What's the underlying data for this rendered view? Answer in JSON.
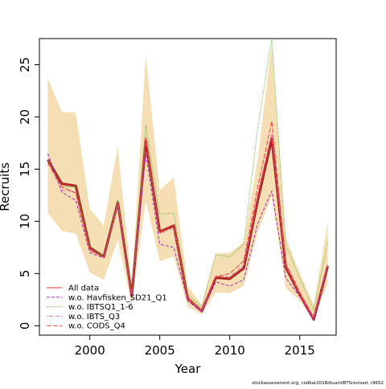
{
  "chart_data": {
    "type": "line",
    "xlabel": "Year",
    "ylabel": "Recruits",
    "xlim": [
      1996.4,
      2017.6
    ],
    "ylim": [
      -0.9,
      27.5
    ],
    "x_ticks": [
      2000,
      2005,
      2010,
      2015
    ],
    "y_ticks": [
      0,
      5,
      10,
      15,
      20,
      25
    ],
    "x": [
      1997,
      1998,
      1999,
      2000,
      2001,
      2002,
      2003,
      2004,
      2005,
      2006,
      2007,
      2008,
      2009,
      2010,
      2011,
      2012,
      2013,
      2014,
      2015,
      2016,
      2017
    ],
    "band": {
      "color": "#f5deb3",
      "upper": [
        23.7,
        20.5,
        20.4,
        11.2,
        9.6,
        17.2,
        3.9,
        25.9,
        13.0,
        14.2,
        3.8,
        2.0,
        6.9,
        7.0,
        8.0,
        16.0,
        27.0,
        8.5,
        5.0,
        2.0,
        9.9
      ],
      "lower": [
        10.8,
        9.1,
        8.8,
        5.1,
        4.4,
        8.2,
        2.0,
        12.0,
        6.2,
        6.6,
        1.8,
        1.1,
        3.2,
        3.1,
        3.8,
        9.0,
        12.4,
        3.6,
        2.4,
        0.5,
        4.0
      ]
    },
    "series": [
      {
        "name": "All data",
        "color": "#8b1a1a",
        "style": "bold",
        "values": [
          15.9,
          13.6,
          13.4,
          7.5,
          6.6,
          11.8,
          2.9,
          17.7,
          9.0,
          9.6,
          2.6,
          1.4,
          4.6,
          4.5,
          5.5,
          12.0,
          17.9,
          5.6,
          3.0,
          0.6,
          5.7
        ]
      },
      {
        "name": "All data",
        "color": "#e8342c",
        "style": "solid",
        "values": [
          15.9,
          13.6,
          13.4,
          7.5,
          6.6,
          11.8,
          2.9,
          17.7,
          9.0,
          9.6,
          2.6,
          1.4,
          4.6,
          4.5,
          5.5,
          12.0,
          17.9,
          5.6,
          3.0,
          0.6,
          5.7
        ]
      },
      {
        "name": "w.o. Havfisken_SD21_Q1",
        "color": "#9b30b0",
        "style": "dashed",
        "values": [
          16.5,
          12.8,
          12.0,
          7.0,
          6.5,
          11.5,
          2.7,
          16.5,
          7.8,
          7.5,
          2.4,
          1.3,
          4.2,
          3.8,
          4.4,
          9.8,
          12.9,
          4.6,
          2.8,
          0.5,
          5.6
        ]
      },
      {
        "name": "w.o. IBTSQ1_1-6",
        "color": "#4caf1f",
        "style": "dotted",
        "values": [
          15.8,
          13.3,
          13.3,
          7.6,
          6.6,
          12.0,
          3.2,
          19.2,
          10.7,
          10.8,
          3.0,
          1.8,
          6.8,
          6.6,
          7.8,
          19.0,
          27.5,
          7.7,
          4.6,
          1.5,
          8.0
        ]
      },
      {
        "name": "w.o. IBTS_Q3",
        "color": "#e26aa8",
        "style": "dashdot",
        "values": [
          15.7,
          13.0,
          12.8,
          7.3,
          6.5,
          11.7,
          2.8,
          18.0,
          8.8,
          9.4,
          2.5,
          1.4,
          4.8,
          4.7,
          5.8,
          12.6,
          18.5,
          5.8,
          3.1,
          0.7,
          5.9
        ]
      },
      {
        "name": "w.o. CODS_Q4",
        "color": "#f0433a",
        "style": "longdash",
        "values": [
          15.6,
          13.3,
          12.7,
          7.2,
          6.6,
          11.6,
          2.9,
          18.1,
          8.9,
          9.7,
          2.7,
          1.5,
          4.7,
          5.0,
          6.2,
          13.3,
          19.6,
          6.0,
          3.2,
          0.8,
          5.8
        ]
      }
    ],
    "legend": {
      "placement": "bottom-left",
      "entries": [
        "All data",
        "w.o. Havfisken_SD21_Q1",
        "w.o. IBTSQ1_1-6",
        "w.o. IBTS_Q3",
        "w.o. CODS_Q4"
      ],
      "colors": [
        "#e8342c",
        "#9b30b0",
        "#4caf1f",
        "#e26aa8",
        "#f0433a"
      ],
      "styles": [
        "solid",
        "dashed",
        "dotted",
        "dashdot",
        "longdash"
      ]
    },
    "grid": false
  },
  "footer_text": "stockassessment.org, codkat2018dtuamIBTSrevised, r9652"
}
